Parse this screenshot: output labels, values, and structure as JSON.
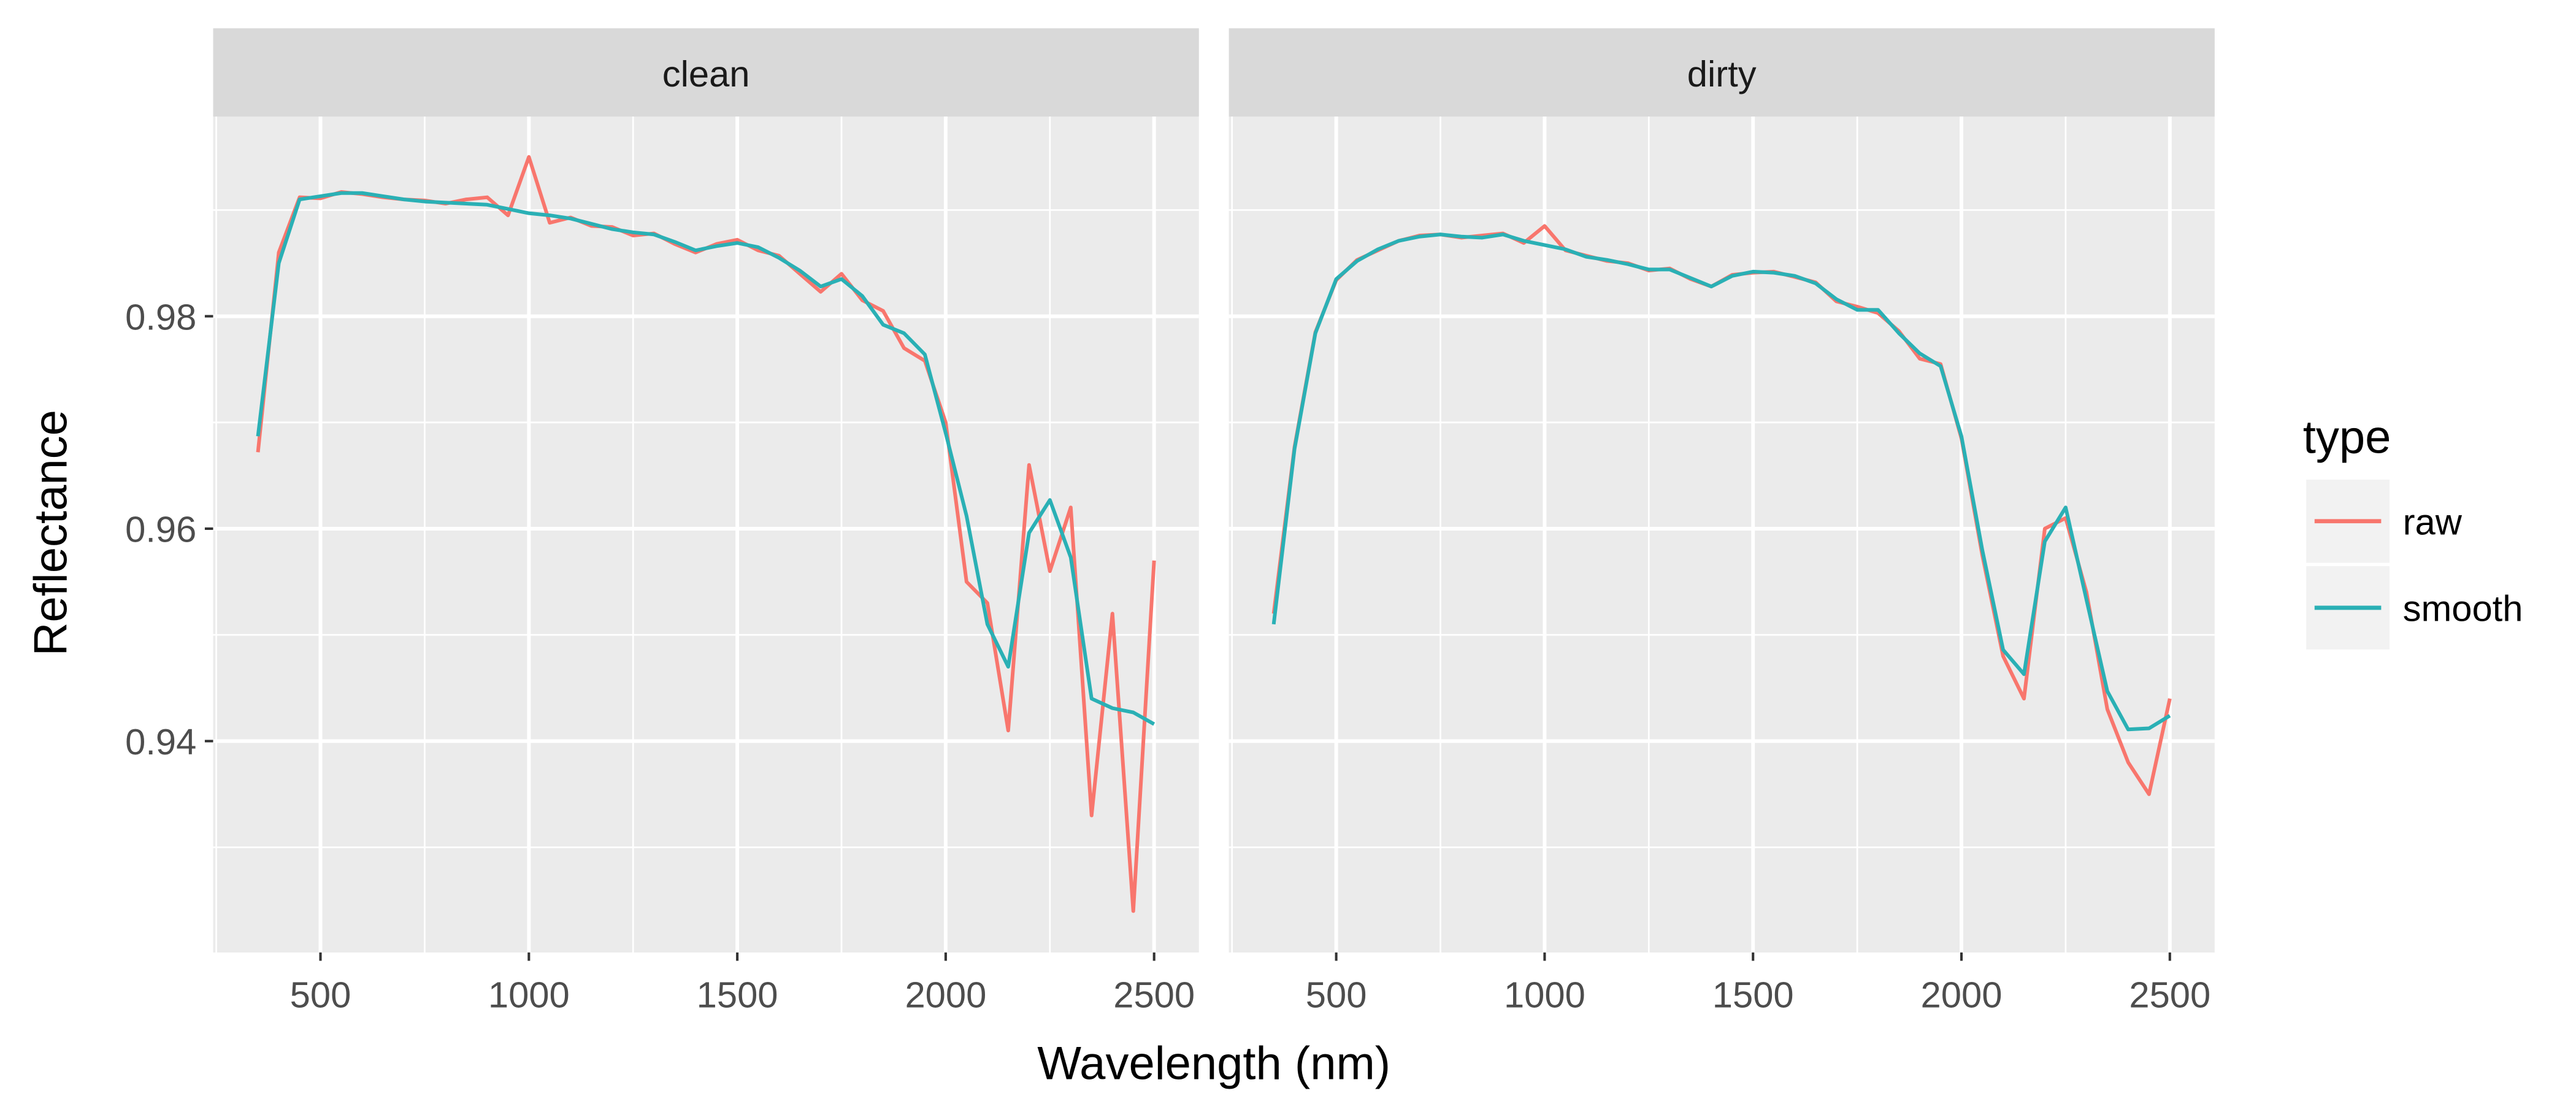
{
  "figure": {
    "x_label": "Wavelength (nm)",
    "y_label": "Reflectance",
    "legend_title": "type"
  },
  "chart_data": [
    {
      "type": "line",
      "title": "clean",
      "x": [
        350,
        400,
        450,
        500,
        550,
        600,
        650,
        700,
        750,
        800,
        850,
        900,
        950,
        1000,
        1050,
        1100,
        1150,
        1200,
        1250,
        1300,
        1350,
        1400,
        1450,
        1500,
        1550,
        1600,
        1650,
        1700,
        1750,
        1800,
        1850,
        1900,
        1950,
        2000,
        2050,
        2100,
        2150,
        2200,
        2250,
        2300,
        2350,
        2400,
        2450,
        2500
      ],
      "series": [
        {
          "name": "raw",
          "color": "#F8766D",
          "values": [
            0.9672,
            0.986,
            0.9912,
            0.9911,
            0.9917,
            0.9915,
            0.9912,
            0.991,
            0.9909,
            0.9906,
            0.991,
            0.9912,
            0.9895,
            0.995,
            0.9888,
            0.9893,
            0.9885,
            0.9884,
            0.9876,
            0.9878,
            0.9868,
            0.986,
            0.9868,
            0.9872,
            0.9862,
            0.9857,
            0.984,
            0.9823,
            0.984,
            0.9815,
            0.9805,
            0.977,
            0.9758,
            0.97,
            0.955,
            0.953,
            0.941,
            0.966,
            0.956,
            0.962,
            0.933,
            0.952,
            0.924,
            0.957
          ]
        },
        {
          "name": "smooth",
          "color": "#2AB0B5",
          "values": [
            0.9687,
            0.985,
            0.991,
            0.9913,
            0.9916,
            0.9916,
            0.9913,
            0.991,
            0.9908,
            0.9907,
            0.9906,
            0.9905,
            0.9901,
            0.9897,
            0.9895,
            0.9892,
            0.9887,
            0.9882,
            0.9879,
            0.9877,
            0.987,
            0.9862,
            0.9866,
            0.9869,
            0.9865,
            0.9855,
            0.9843,
            0.9828,
            0.9835,
            0.9819,
            0.9792,
            0.9784,
            0.9764,
            0.969,
            0.9612,
            0.951,
            0.947,
            0.9596,
            0.9627,
            0.9573,
            0.944,
            0.9431,
            0.9427,
            0.9416
          ]
        }
      ],
      "xlim": [
        242.5,
        2607.5
      ],
      "xticks": [
        500,
        1000,
        1500,
        2000,
        2500
      ],
      "minor_xticks": [
        250,
        750,
        1250,
        1750,
        2250
      ],
      "ylim": [
        0.9201,
        0.9988
      ],
      "yticks": [
        0.94,
        0.96,
        0.98
      ],
      "minor_yticks": [
        0.93,
        0.95,
        0.97,
        0.99
      ],
      "grid": true
    },
    {
      "type": "line",
      "title": "dirty",
      "x": [
        350,
        400,
        450,
        500,
        550,
        600,
        650,
        700,
        750,
        800,
        850,
        900,
        950,
        1000,
        1050,
        1100,
        1150,
        1200,
        1250,
        1300,
        1350,
        1400,
        1450,
        1500,
        1550,
        1600,
        1650,
        1700,
        1750,
        1800,
        1850,
        1900,
        1950,
        2000,
        2050,
        2100,
        2150,
        2200,
        2250,
        2300,
        2350,
        2400,
        2450,
        2500
      ],
      "series": [
        {
          "name": "raw",
          "color": "#F8766D",
          "values": [
            0.952,
            0.9677,
            0.9785,
            0.9834,
            0.9853,
            0.9862,
            0.9871,
            0.9876,
            0.9877,
            0.9874,
            0.9876,
            0.9878,
            0.9869,
            0.9885,
            0.9862,
            0.9857,
            0.9852,
            0.985,
            0.9843,
            0.9845,
            0.9835,
            0.9828,
            0.9839,
            0.9841,
            0.9842,
            0.9837,
            0.9832,
            0.9814,
            0.9809,
            0.9803,
            0.9786,
            0.976,
            0.9755,
            0.9685,
            0.9575,
            0.948,
            0.944,
            0.96,
            0.961,
            0.954,
            0.943,
            0.938,
            0.935,
            0.944
          ]
        },
        {
          "name": "smooth",
          "color": "#2AB0B5",
          "values": [
            0.951,
            0.9675,
            0.9784,
            0.9835,
            0.9852,
            0.9863,
            0.9871,
            0.9875,
            0.9877,
            0.9875,
            0.9874,
            0.9877,
            0.9871,
            0.9867,
            0.9863,
            0.9856,
            0.9853,
            0.9849,
            0.9844,
            0.9844,
            0.9836,
            0.9828,
            0.9838,
            0.9842,
            0.9841,
            0.9838,
            0.9831,
            0.9816,
            0.9806,
            0.9806,
            0.9784,
            0.9765,
            0.9753,
            0.9687,
            0.958,
            0.9486,
            0.9463,
            0.9588,
            0.962,
            0.9533,
            0.9447,
            0.9411,
            0.9412,
            0.9424
          ]
        }
      ],
      "xlim": [
        242.5,
        2607.5
      ],
      "xticks": [
        500,
        1000,
        1500,
        2000,
        2500
      ],
      "minor_xticks": [
        250,
        750,
        1250,
        1750,
        2250
      ],
      "ylim": [
        0.9201,
        0.9988
      ],
      "yticks": [
        0.94,
        0.96,
        0.98
      ],
      "minor_yticks": [
        0.93,
        0.95,
        0.97,
        0.99
      ],
      "grid": true
    }
  ]
}
